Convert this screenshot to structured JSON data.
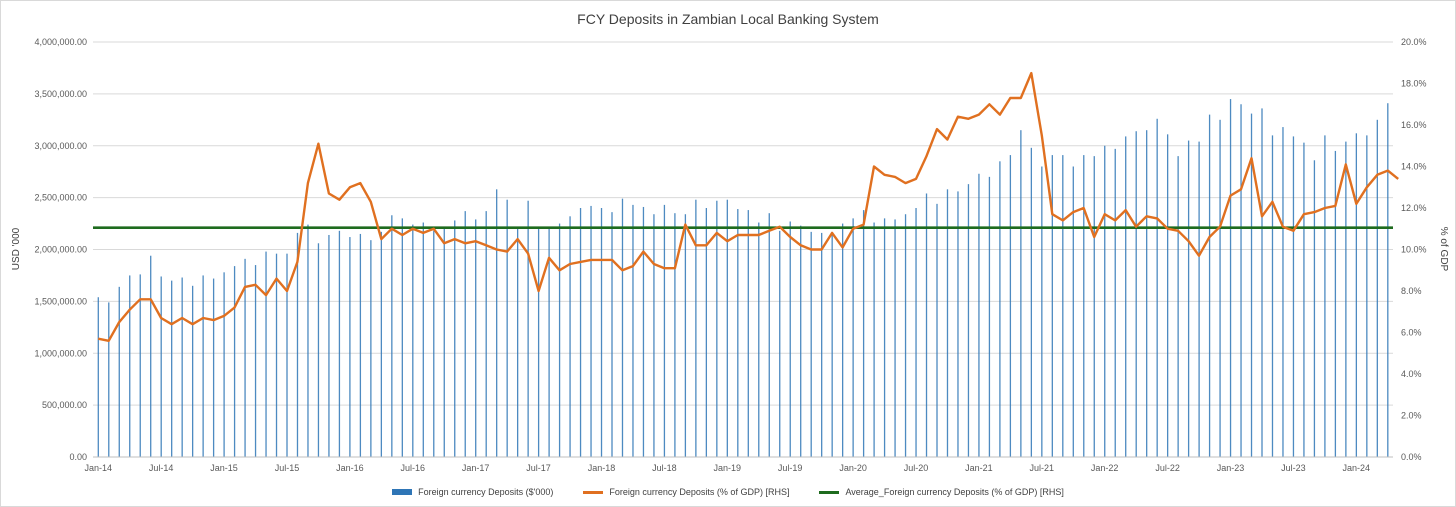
{
  "chart_data": {
    "type": "bar",
    "title": "FCY Deposits in Zambian Local Banking System",
    "ylabel": "USD '000",
    "y2label": "% of GDP",
    "ylim": [
      0,
      4000000
    ],
    "y2lim": [
      0,
      20
    ],
    "yticks": [
      "0.00",
      "500,000.00",
      "1,000,000.00",
      "1,500,000.00",
      "2,000,000.00",
      "2,500,000.00",
      "3,000,000.00",
      "3,500,000.00",
      "4,000,000.00"
    ],
    "y2ticks": [
      "0.0%",
      "2.0%",
      "4.0%",
      "6.0%",
      "8.0%",
      "10.0%",
      "12.0%",
      "14.0%",
      "16.0%",
      "18.0%",
      "20.0%"
    ],
    "xticks": [
      {
        "label": "Jan-14",
        "index": 0
      },
      {
        "label": "Jul-14",
        "index": 6
      },
      {
        "label": "Jan-15",
        "index": 12
      },
      {
        "label": "Jul-15",
        "index": 18
      },
      {
        "label": "Jan-16",
        "index": 24
      },
      {
        "label": "Jul-16",
        "index": 30
      },
      {
        "label": "Jan-17",
        "index": 36
      },
      {
        "label": "Jul-17",
        "index": 42
      },
      {
        "label": "Jan-18",
        "index": 48
      },
      {
        "label": "Jul-18",
        "index": 54
      },
      {
        "label": "Jan-19",
        "index": 60
      },
      {
        "label": "Jul-19",
        "index": 66
      },
      {
        "label": "Jan-20",
        "index": 72
      },
      {
        "label": "Jul-20",
        "index": 78
      },
      {
        "label": "Jan-21",
        "index": 84
      },
      {
        "label": "Jul-21",
        "index": 90
      },
      {
        "label": "Jan-22",
        "index": 96
      },
      {
        "label": "Jul-22",
        "index": 102
      },
      {
        "label": "Jan-23",
        "index": 108
      },
      {
        "label": "Jul-23",
        "index": 114
      },
      {
        "label": "Jan-24",
        "index": 120
      }
    ],
    "start": "Jan-14",
    "legend": "bottom",
    "grid": true,
    "series": [
      {
        "name": "Foreign currency Deposits ($'000)",
        "type": "bar",
        "axis": "left",
        "color": "#2e75b6",
        "values": [
          1540000,
          1490000,
          1640000,
          1750000,
          1760000,
          1940000,
          1740000,
          1700000,
          1730000,
          1650000,
          1750000,
          1720000,
          1780000,
          1840000,
          1910000,
          1850000,
          1980000,
          1960000,
          1960000,
          2160000,
          2240000,
          2060000,
          2140000,
          2180000,
          2120000,
          2150000,
          2090000,
          2170000,
          2330000,
          2300000,
          2240000,
          2260000,
          2180000,
          2220000,
          2280000,
          2370000,
          2290000,
          2370000,
          2580000,
          2480000,
          2220000,
          2470000,
          2200000,
          2200000,
          2250000,
          2320000,
          2400000,
          2420000,
          2400000,
          2360000,
          2490000,
          2430000,
          2410000,
          2340000,
          2430000,
          2350000,
          2340000,
          2480000,
          2400000,
          2470000,
          2480000,
          2390000,
          2380000,
          2260000,
          2350000,
          2180000,
          2270000,
          2230000,
          2170000,
          2160000,
          2160000,
          2250000,
          2300000,
          2380000,
          2260000,
          2300000,
          2290000,
          2340000,
          2400000,
          2540000,
          2440000,
          2580000,
          2560000,
          2630000,
          2730000,
          2700000,
          2850000,
          2910000,
          3150000,
          2980000,
          2800000,
          2910000,
          2910000,
          2800000,
          2910000,
          2900000,
          3000000,
          2970000,
          3090000,
          3140000,
          3150000,
          3260000,
          3110000,
          2900000,
          3050000,
          3040000,
          3300000,
          3250000,
          3450000,
          3400000,
          3310000,
          3360000,
          3100000,
          3180000,
          3090000,
          3030000,
          2860000,
          3100000,
          2950000,
          3040000,
          3120000,
          3100000,
          3250000,
          3410000
        ]
      },
      {
        "name": "Foreign currency Deposits (% of GDP) [RHS]",
        "type": "line",
        "axis": "right",
        "color": "#e07020",
        "values": [
          5.7,
          5.6,
          6.5,
          7.1,
          7.6,
          7.6,
          6.7,
          6.4,
          6.7,
          6.4,
          6.7,
          6.6,
          6.8,
          7.2,
          8.2,
          8.3,
          7.8,
          8.6,
          8.0,
          9.4,
          13.2,
          15.1,
          12.7,
          12.4,
          13.0,
          13.2,
          12.3,
          10.5,
          11.0,
          10.7,
          11.0,
          10.8,
          11.0,
          10.3,
          10.5,
          10.3,
          10.4,
          10.2,
          10.0,
          9.9,
          10.5,
          9.8,
          8.0,
          9.6,
          9.0,
          9.3,
          9.4,
          9.5,
          9.5,
          9.5,
          9.0,
          9.2,
          9.9,
          9.3,
          9.1,
          9.1,
          11.2,
          10.2,
          10.2,
          10.8,
          10.4,
          10.7,
          10.7,
          10.7,
          10.9,
          11.1,
          10.6,
          10.2,
          10.0,
          10.0,
          10.8,
          10.1,
          11.0,
          11.2,
          14.0,
          13.6,
          13.5,
          13.2,
          13.4,
          14.5,
          15.8,
          15.3,
          16.4,
          16.3,
          16.5,
          17.0,
          16.5,
          17.3,
          17.3,
          18.5,
          15.5,
          11.7,
          11.4,
          11.8,
          12.0,
          10.6,
          11.7,
          11.4,
          11.9,
          11.1,
          11.6,
          11.5,
          11.0,
          10.9,
          10.4,
          9.7,
          10.6,
          11.1,
          12.6,
          12.9,
          14.4,
          11.6,
          12.3,
          11.1,
          10.9,
          11.7,
          11.8,
          12.0,
          12.1,
          14.1,
          12.2,
          13.0,
          13.6,
          13.8,
          13.4
        ]
      },
      {
        "name": "Average_Foreign currency Deposits (% of GDP) [RHS]",
        "type": "line",
        "axis": "right",
        "color": "#1e6b1e",
        "value": 11.05
      }
    ]
  }
}
